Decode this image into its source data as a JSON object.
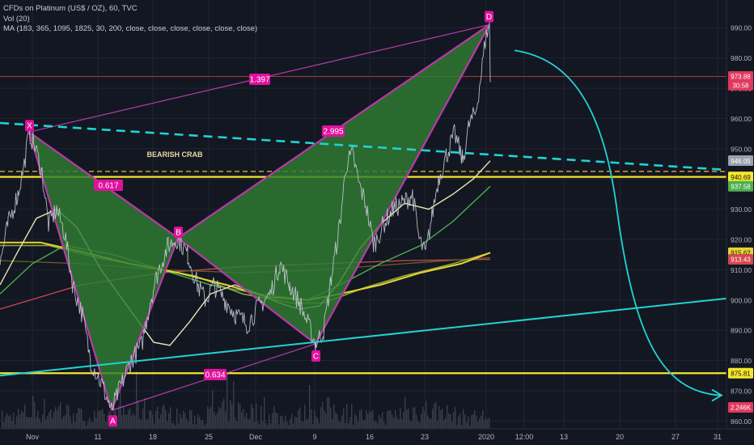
{
  "legend": {
    "title": "CFDs on Platinum (US$ / OZ), 60, TVC",
    "volume": "Vol (20)",
    "ma": "MA (183, 365, 1095, 1825, 30, 200, close, close, close, close, close, close)"
  },
  "colors": {
    "background": "#131722",
    "pattern_fill": "#2f7d32",
    "pattern_line": "#b83aa8",
    "ratio_label_bg": "#e0119d",
    "trend_cyan": "#22d3d3",
    "support_yellow": "#f5e62a",
    "ma_cream": "#ece3b4",
    "ma_green": "#4caf50",
    "ma_yellow": "#e5d532",
    "ma_red": "#d3474d",
    "ma_olive": "#8fa33a",
    "volume": "#3a3e4a"
  },
  "chart_data": {
    "type": "line",
    "title": "CFDs on Platinum (US$ / OZ), 60, TVC",
    "y_axis": {
      "ylim": [
        856,
        996
      ],
      "ticks": [
        860,
        870,
        880,
        890,
        900,
        910,
        920,
        930,
        940,
        950,
        960,
        970,
        980,
        990
      ],
      "tick_labels": [
        "860.00",
        "870.00",
        "880.00",
        "890.00",
        "900.00",
        "910.00",
        "920.00",
        "930.00",
        "940.00",
        "950.00",
        "960.00",
        "970.00",
        "980.00",
        "990.00"
      ]
    },
    "x_axis": {
      "tick_labels": [
        "Nov",
        "11",
        "18",
        "25",
        "Dec",
        "9",
        "16",
        "23",
        "2020",
        "12:00",
        "13",
        "20",
        "27",
        "31"
      ]
    },
    "price_tags": [
      {
        "label": "973.88",
        "value": 973.88,
        "color": "#e0395e"
      },
      {
        "label": "30:58",
        "value": 971.0,
        "color": "#e0395e"
      },
      {
        "label": "946.05",
        "value": 946.05,
        "color": "#9aa0ad"
      },
      {
        "label": "940.69",
        "value": 940.69,
        "color": "#f5e62a"
      },
      {
        "label": "937.58",
        "value": 937.58,
        "color": "#4caf50"
      },
      {
        "label": "915.62",
        "value": 915.62,
        "color": "#e5d532"
      },
      {
        "label": "913.43",
        "value": 913.43,
        "color": "#d3474d"
      },
      {
        "label": "875.81",
        "value": 875.81,
        "color": "#f5e62a"
      },
      {
        "label": "2.246K",
        "value": 864.5,
        "color": "#e0395e"
      }
    ],
    "harmonic_pattern": {
      "name": "BEARISH CRAB",
      "points": [
        {
          "label": "X",
          "value": 955.5
        },
        {
          "label": "A",
          "value": 863.5
        },
        {
          "label": "B",
          "value": 920.5
        },
        {
          "label": "C",
          "value": 885.5
        },
        {
          "label": "D",
          "value": 991.0
        }
      ],
      "ratios": [
        {
          "label": "0.617"
        },
        {
          "label": "0.634"
        },
        {
          "label": "1.397"
        },
        {
          "label": "2.995"
        }
      ]
    },
    "horizontal_levels": [
      {
        "value": 940.69,
        "style": "solid",
        "color": "#f5e62a"
      },
      {
        "value": 942.5,
        "style": "dashed",
        "color": "#e8a33a"
      },
      {
        "value": 875.81,
        "style": "solid",
        "color": "#f5e62a"
      },
      {
        "value": 973.88,
        "style": "solid",
        "color": "#a33a3a"
      }
    ],
    "trendlines": [
      {
        "name": "upper-dashed",
        "from": 958.5,
        "to": 943.0
      },
      {
        "name": "lower-support",
        "from": 875.0,
        "to": 900.5
      }
    ],
    "projection": {
      "from": 982.5,
      "to": 868.5
    }
  }
}
